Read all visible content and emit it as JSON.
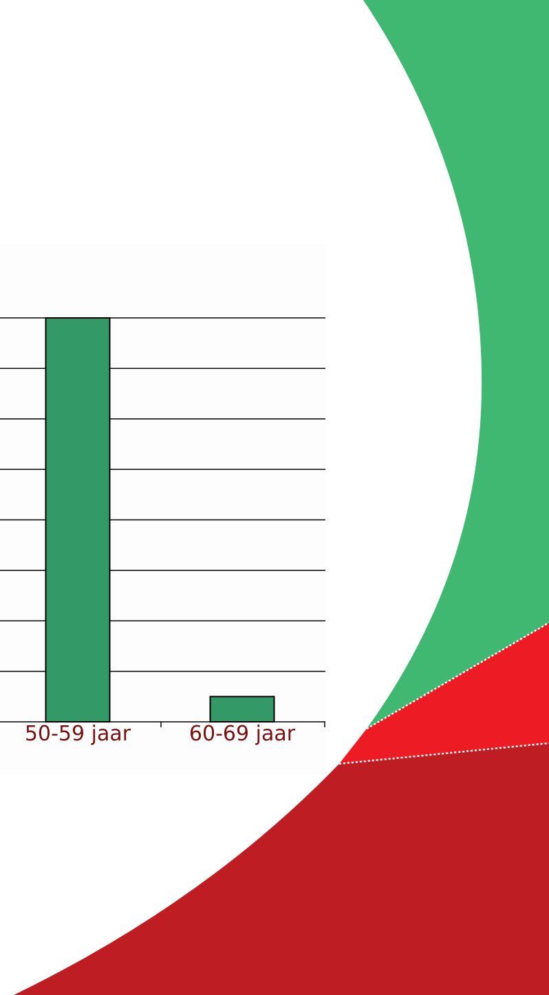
{
  "chart_data": {
    "type": "bar",
    "categories": [
      "50-59 jaar",
      "60-69 jaar"
    ],
    "values": [
      16,
      1
    ],
    "ylim": [
      0,
      16
    ],
    "grid": true,
    "bar_color": "#339966",
    "tick_label_color": "#7a1212"
  },
  "decoration": {
    "green_color": "#41b871",
    "red_color": "#ed1c24",
    "dark_red_color": "#be1e23",
    "background_color": "#fdfdfd"
  }
}
